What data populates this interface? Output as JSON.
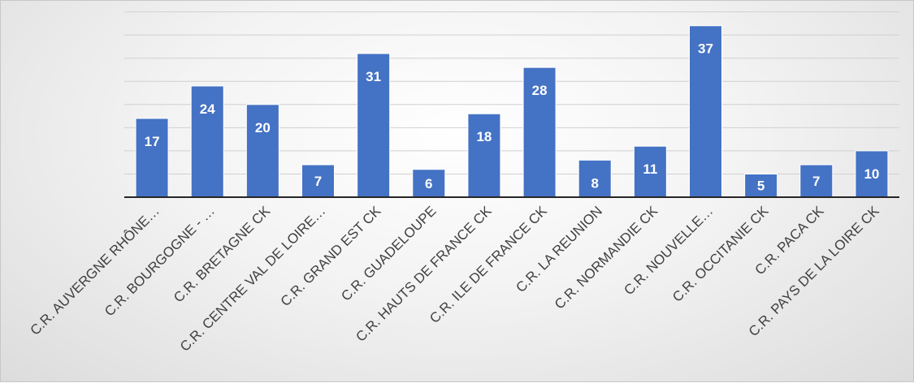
{
  "chart_data": {
    "type": "bar",
    "categories": [
      "C.R. AUVERGNE RHÔNE…",
      "C.R. BOURGOGNE - …",
      "C.R. BRETAGNE CK",
      "C.R. CENTRE VAL DE LOIRE…",
      "C.R. GRAND EST CK",
      "C.R. GUADELOUPE",
      "C.R. HAUTS DE FRANCE CK",
      "C.R. ILE DE FRANCE CK",
      "C.R. LA REUNION",
      "C.R. NORMANDIE CK",
      "C.R. NOUVELLE…",
      "C.R. OCCITANIE CK",
      "C.R. PACA CK",
      "C.R. PAYS DE LA LOIRE CK"
    ],
    "values": [
      17,
      24,
      20,
      7,
      31,
      6,
      18,
      28,
      8,
      11,
      37,
      5,
      7,
      10
    ],
    "title": "",
    "xlabel": "",
    "ylabel": "",
    "ylim": [
      0,
      40
    ],
    "grid": true,
    "bar_color": "#4472c4",
    "data_label_color": "#ffffff"
  }
}
